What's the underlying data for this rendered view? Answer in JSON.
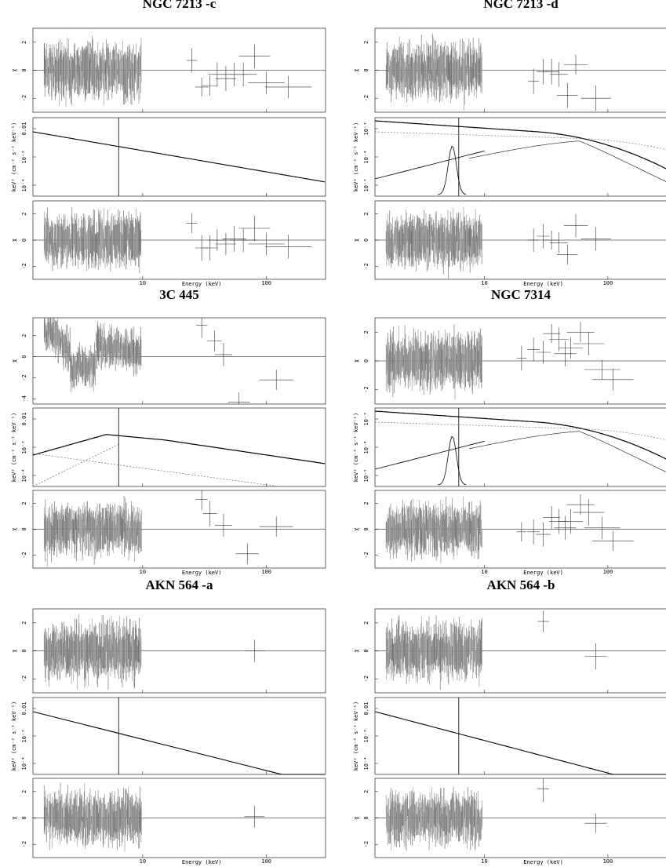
{
  "chart_data": [
    {
      "type": "scatter",
      "title": "NGC 7213 -c",
      "xlabel": "Energy (keV)",
      "x_scale": "log",
      "x_ticks": [
        "10",
        "100"
      ],
      "panels": [
        {
          "role": "residuals",
          "ylabel": "χ",
          "yticks": [
            "2",
            "0",
            "-2"
          ],
          "high_energy_points": [
            [
              25,
              0.7
            ],
            [
              30,
              -1.2
            ],
            [
              35,
              -1.1
            ],
            [
              40,
              -0.3
            ],
            [
              47,
              -0.6
            ],
            [
              55,
              -0.3
            ],
            [
              65,
              -0.3
            ],
            [
              80,
              1.0
            ],
            [
              100,
              -0.9
            ],
            [
              150,
              -1.2
            ]
          ]
        },
        {
          "role": "model",
          "ylabel": "keV² (cm⁻² s⁻¹ keV⁻¹)",
          "yticks": [
            "0.01",
            "10⁻³",
            "10⁻⁴"
          ],
          "model": "power-law"
        },
        {
          "role": "residuals",
          "ylabel": "χ",
          "yticks": [
            "2",
            "0",
            "-2"
          ],
          "high_energy_points": [
            [
              25,
              1.3
            ],
            [
              30,
              -0.6
            ],
            [
              35,
              -0.6
            ],
            [
              40,
              0.0
            ],
            [
              47,
              -0.3
            ],
            [
              55,
              0.1
            ],
            [
              65,
              0.0
            ],
            [
              80,
              0.9
            ],
            [
              100,
              -0.3
            ],
            [
              150,
              -0.5
            ]
          ]
        }
      ]
    },
    {
      "type": "scatter",
      "title": "NGC 7213 -d",
      "xlabel": "Energy (keV)",
      "x_scale": "log",
      "x_ticks": [
        "10",
        "100"
      ],
      "panels": [
        {
          "role": "residuals",
          "ylabel": "χ",
          "yticks": [
            "2",
            "0",
            "-2"
          ],
          "high_energy_points": [
            [
              25,
              -0.8
            ],
            [
              30,
              -0.1
            ],
            [
              35,
              -0.1
            ],
            [
              40,
              -0.3
            ],
            [
              47,
              -1.8
            ],
            [
              55,
              0.4
            ],
            [
              80,
              -2.0
            ]
          ]
        },
        {
          "role": "model",
          "ylabel": "keV² (cm⁻² s⁻¹ keV⁻¹)",
          "yticks": [
            "10⁻³",
            "10⁻⁴",
            "10⁻⁵"
          ],
          "model": "power-law + reflection + Fe line"
        },
        {
          "role": "residuals",
          "ylabel": "χ",
          "yticks": [
            "2",
            "0",
            "-2"
          ],
          "high_energy_points": [
            [
              25,
              0.0
            ],
            [
              30,
              0.3
            ],
            [
              35,
              0.0
            ],
            [
              40,
              -0.2
            ],
            [
              47,
              -1.1
            ],
            [
              55,
              1.1
            ],
            [
              80,
              0.1
            ]
          ]
        }
      ]
    },
    {
      "type": "scatter",
      "title": "3C 445",
      "xlabel": "Energy (keV)",
      "x_scale": "log",
      "x_ticks": [
        "10",
        "100"
      ],
      "panels": [
        {
          "role": "residuals",
          "ylabel": "χ",
          "yticks": [
            "2",
            "0",
            "-2",
            "-4"
          ],
          "high_energy_points": [
            [
              30,
              3.0
            ],
            [
              38,
              1.5
            ],
            [
              45,
              0.2
            ],
            [
              60,
              -4.3
            ],
            [
              120,
              -2.2
            ]
          ]
        },
        {
          "role": "model",
          "ylabel": "keV² (cm⁻² s⁻¹ keV⁻¹)",
          "yticks": [
            "0.01",
            "10⁻³",
            "10⁻⁴"
          ],
          "model": "absorbed power-law + scattered component"
        },
        {
          "role": "residuals",
          "ylabel": "χ",
          "yticks": [
            "2",
            "0",
            "-2"
          ],
          "high_energy_points": [
            [
              30,
              2.3
            ],
            [
              35,
              1.2
            ],
            [
              45,
              0.3
            ],
            [
              70,
              -1.9
            ],
            [
              120,
              0.2
            ]
          ]
        }
      ]
    },
    {
      "type": "scatter",
      "title": "NGC 7314",
      "xlabel": "Energy (keV)",
      "x_scale": "log",
      "x_ticks": [
        "10",
        "100"
      ],
      "panels": [
        {
          "role": "residuals",
          "ylabel": "χ",
          "yticks": [
            "2",
            "0",
            "-2"
          ],
          "high_energy_points": [
            [
              20,
              0.2
            ],
            [
              25,
              0.8
            ],
            [
              30,
              0.6
            ],
            [
              35,
              1.9
            ],
            [
              40,
              1.5
            ],
            [
              45,
              0.5
            ],
            [
              50,
              0.9
            ],
            [
              60,
              2.0
            ],
            [
              70,
              1.2
            ],
            [
              90,
              -0.6
            ],
            [
              110,
              -1.3
            ]
          ]
        },
        {
          "role": "model",
          "ylabel": "keV² (cm⁻² s⁻¹ keV⁻¹)",
          "yticks": [
            "10⁻³",
            "10⁻⁴",
            "10⁻⁵"
          ],
          "model": "power-law + reflection + Fe line"
        },
        {
          "role": "residuals",
          "ylabel": "χ",
          "yticks": [
            "2",
            "0",
            "-2"
          ],
          "high_energy_points": [
            [
              20,
              -0.2
            ],
            [
              25,
              -0.2
            ],
            [
              30,
              -0.4
            ],
            [
              35,
              0.9
            ],
            [
              40,
              0.6
            ],
            [
              45,
              0.1
            ],
            [
              50,
              0.6
            ],
            [
              60,
              1.9
            ],
            [
              70,
              1.3
            ],
            [
              90,
              0.1
            ],
            [
              110,
              -0.9
            ]
          ]
        }
      ]
    },
    {
      "type": "scatter",
      "title": "AKN 564 -a",
      "xlabel": "Energy (keV)",
      "x_scale": "log",
      "x_ticks": [
        "10",
        "100"
      ],
      "panels": [
        {
          "role": "residuals",
          "ylabel": "χ",
          "yticks": [
            "2",
            "0",
            "-2"
          ],
          "high_energy_points": [
            [
              80,
              0.0
            ]
          ]
        },
        {
          "role": "model",
          "ylabel": "keV² (cm⁻² s⁻¹ keV⁻¹)",
          "yticks": [
            "0.01",
            "10⁻³",
            "10⁻⁴"
          ],
          "model": "power-law"
        },
        {
          "role": "residuals",
          "ylabel": "χ",
          "yticks": [
            "2",
            "0",
            "-2"
          ],
          "high_energy_points": [
            [
              80,
              0.1
            ]
          ]
        }
      ]
    },
    {
      "type": "scatter",
      "title": "AKN 564 -b",
      "xlabel": "Energy (keV)",
      "x_scale": "log",
      "x_ticks": [
        "10",
        "100"
      ],
      "panels": [
        {
          "role": "residuals",
          "ylabel": "χ",
          "yticks": [
            "2",
            "0",
            "-2"
          ],
          "high_energy_points": [
            [
              30,
              2.1
            ],
            [
              80,
              -0.4
            ]
          ]
        },
        {
          "role": "model",
          "ylabel": "keV² (cm⁻² s⁻¹ keV⁻¹)",
          "yticks": [
            "0.01",
            "10⁻³",
            "10⁻⁴"
          ],
          "model": "power-law"
        },
        {
          "role": "residuals",
          "ylabel": "χ",
          "yticks": [
            "2",
            "0",
            "-2"
          ],
          "high_energy_points": [
            [
              30,
              2.2
            ],
            [
              80,
              -0.4
            ]
          ]
        }
      ]
    }
  ]
}
